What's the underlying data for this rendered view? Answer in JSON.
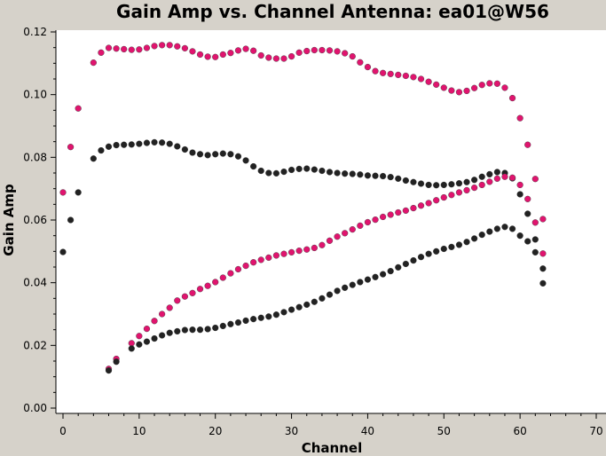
{
  "chart_data": {
    "type": "scatter",
    "title": "Gain Amp vs. Channel Antenna: ea01@W56",
    "xlabel": "Channel",
    "ylabel": "Gain Amp",
    "xlim": [
      0,
      70
    ],
    "ylim": [
      0,
      0.12
    ],
    "xticks": [
      "0",
      "10",
      "20",
      "30",
      "40",
      "50",
      "60",
      "70"
    ],
    "yticks": [
      "0.00",
      "0.02",
      "0.04",
      "0.06",
      "0.08",
      "0.10",
      "0.12"
    ],
    "grid": false,
    "colors": {
      "magenta": "#e0146e",
      "black": "#222222",
      "plot_bg": "#ffffff",
      "frame_bg": "#d6d2ca"
    },
    "series": [
      {
        "color": "magenta",
        "x": [
          0,
          1,
          2,
          4,
          5,
          6,
          7,
          8,
          9,
          10,
          11,
          12,
          13,
          14,
          15,
          16,
          17,
          18,
          19,
          20,
          21,
          22,
          23,
          24,
          25,
          26,
          27,
          28,
          29,
          30,
          31,
          32,
          33,
          34,
          35,
          36,
          37,
          38,
          39,
          40,
          41,
          42,
          43,
          44,
          45,
          46,
          47,
          48,
          49,
          50,
          51,
          52,
          53,
          54,
          55,
          56,
          57,
          58,
          59,
          60,
          61,
          62,
          63
        ],
        "y": [
          0.0688,
          0.0833,
          0.0956,
          0.1102,
          0.1134,
          0.1149,
          0.1147,
          0.1145,
          0.1143,
          0.1144,
          0.1149,
          0.1155,
          0.1158,
          0.1158,
          0.1154,
          0.1148,
          0.1138,
          0.1128,
          0.1121,
          0.112,
          0.1128,
          0.1133,
          0.1141,
          0.1146,
          0.114,
          0.1125,
          0.1118,
          0.1115,
          0.1115,
          0.1122,
          0.1134,
          0.1139,
          0.1142,
          0.1142,
          0.1141,
          0.1138,
          0.1132,
          0.1122,
          0.1103,
          0.1088,
          0.1075,
          0.1069,
          0.1066,
          0.1063,
          0.106,
          0.1056,
          0.105,
          0.1041,
          0.1032,
          0.1022,
          0.1013,
          0.1008,
          0.1012,
          0.1021,
          0.1031,
          0.1036,
          0.1035,
          0.1022,
          0.0989,
          0.0925,
          0.084,
          0.0731,
          0.0603
        ]
      },
      {
        "color": "black",
        "x": [
          0,
          1,
          2,
          4,
          5,
          6,
          7,
          8,
          9,
          10,
          11,
          12,
          13,
          14,
          15,
          16,
          17,
          18,
          19,
          20,
          21,
          22,
          23,
          24,
          25,
          26,
          27,
          28,
          29,
          30,
          31,
          32,
          33,
          34,
          35,
          36,
          37,
          38,
          39,
          40,
          41,
          42,
          43,
          44,
          45,
          46,
          47,
          48,
          49,
          50,
          51,
          52,
          53,
          54,
          55,
          56,
          57,
          58,
          59,
          60,
          61,
          62,
          63
        ],
        "y": [
          0.0498,
          0.06,
          0.0688,
          0.0796,
          0.0822,
          0.0834,
          0.0839,
          0.084,
          0.0841,
          0.0843,
          0.0846,
          0.0848,
          0.0847,
          0.0843,
          0.0835,
          0.0825,
          0.0815,
          0.081,
          0.0807,
          0.081,
          0.0812,
          0.081,
          0.0803,
          0.079,
          0.0771,
          0.0757,
          0.075,
          0.0749,
          0.0754,
          0.076,
          0.0763,
          0.0764,
          0.0761,
          0.0757,
          0.0753,
          0.075,
          0.0748,
          0.0747,
          0.0745,
          0.0742,
          0.0741,
          0.074,
          0.0737,
          0.0732,
          0.0726,
          0.0721,
          0.0716,
          0.0712,
          0.0711,
          0.0712,
          0.0714,
          0.0717,
          0.0721,
          0.0728,
          0.0738,
          0.0746,
          0.0753,
          0.075,
          0.0733,
          0.0682,
          0.062,
          0.0538,
          0.0445
        ]
      },
      {
        "color": "magenta",
        "x": [
          6,
          7,
          9,
          10,
          11,
          12,
          13,
          14,
          15,
          16,
          17,
          18,
          19,
          20,
          21,
          22,
          23,
          24,
          25,
          26,
          27,
          28,
          29,
          30,
          31,
          32,
          33,
          34,
          35,
          36,
          37,
          38,
          39,
          40,
          41,
          42,
          43,
          44,
          45,
          46,
          47,
          48,
          49,
          50,
          51,
          52,
          53,
          54,
          55,
          56,
          57,
          58,
          59,
          60,
          61,
          62,
          63
        ],
        "y": [
          0.0125,
          0.0157,
          0.0207,
          0.023,
          0.0253,
          0.0278,
          0.03,
          0.032,
          0.0343,
          0.0356,
          0.0367,
          0.038,
          0.039,
          0.0402,
          0.0416,
          0.043,
          0.0443,
          0.0454,
          0.0465,
          0.0473,
          0.048,
          0.0487,
          0.0492,
          0.0497,
          0.0502,
          0.0506,
          0.0511,
          0.052,
          0.0534,
          0.0547,
          0.0558,
          0.057,
          0.0582,
          0.0593,
          0.0601,
          0.061,
          0.0617,
          0.0624,
          0.063,
          0.0638,
          0.0646,
          0.0654,
          0.0663,
          0.0672,
          0.068,
          0.0688,
          0.0695,
          0.0703,
          0.0712,
          0.0722,
          0.0732,
          0.0738,
          0.0735,
          0.0712,
          0.0667,
          0.0592,
          0.0493
        ]
      },
      {
        "color": "black",
        "x": [
          6,
          7,
          9,
          10,
          11,
          12,
          13,
          14,
          15,
          16,
          17,
          18,
          19,
          20,
          21,
          22,
          23,
          24,
          25,
          26,
          27,
          28,
          29,
          30,
          31,
          32,
          33,
          34,
          35,
          36,
          37,
          38,
          39,
          40,
          41,
          42,
          43,
          44,
          45,
          46,
          47,
          48,
          49,
          50,
          51,
          52,
          53,
          54,
          55,
          56,
          57,
          58,
          59,
          60,
          61,
          62,
          63
        ],
        "y": [
          0.012,
          0.0148,
          0.019,
          0.0203,
          0.0212,
          0.0222,
          0.0232,
          0.024,
          0.0245,
          0.0249,
          0.025,
          0.025,
          0.0252,
          0.0256,
          0.0262,
          0.0268,
          0.0273,
          0.0279,
          0.0284,
          0.0288,
          0.0292,
          0.0298,
          0.0306,
          0.0314,
          0.0322,
          0.033,
          0.0339,
          0.035,
          0.0362,
          0.0374,
          0.0384,
          0.0393,
          0.0402,
          0.041,
          0.0418,
          0.0427,
          0.0437,
          0.0449,
          0.046,
          0.0471,
          0.0482,
          0.0492,
          0.05,
          0.0508,
          0.0514,
          0.0521,
          0.053,
          0.0541,
          0.0553,
          0.0563,
          0.0572,
          0.0578,
          0.0572,
          0.055,
          0.0532,
          0.0497,
          0.0398
        ]
      }
    ]
  }
}
